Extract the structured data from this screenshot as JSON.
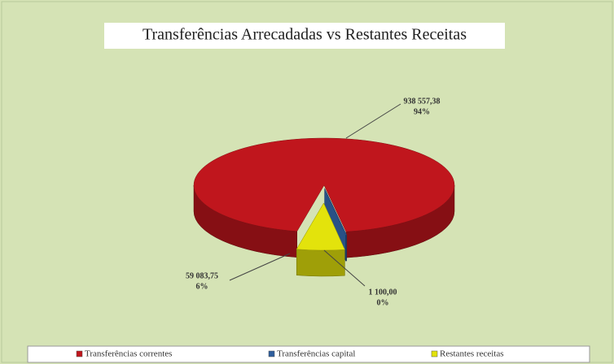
{
  "chart_data": {
    "type": "pie3d",
    "title": "Transferências Arrecadadas vs Restantes Receitas",
    "categories": [
      "Transferências correntes",
      "Transferências capital",
      "Restantes receitas"
    ],
    "values": [
      938557.38,
      1100.0,
      59083.75
    ],
    "value_labels": [
      "938 557,38",
      "1 100,00",
      "59 083,75"
    ],
    "percent_labels": [
      "94%",
      "0%",
      "6%"
    ],
    "colors": [
      "#c0161d",
      "#2f5f9e",
      "#e3e30c"
    ],
    "legend": "bottom"
  }
}
